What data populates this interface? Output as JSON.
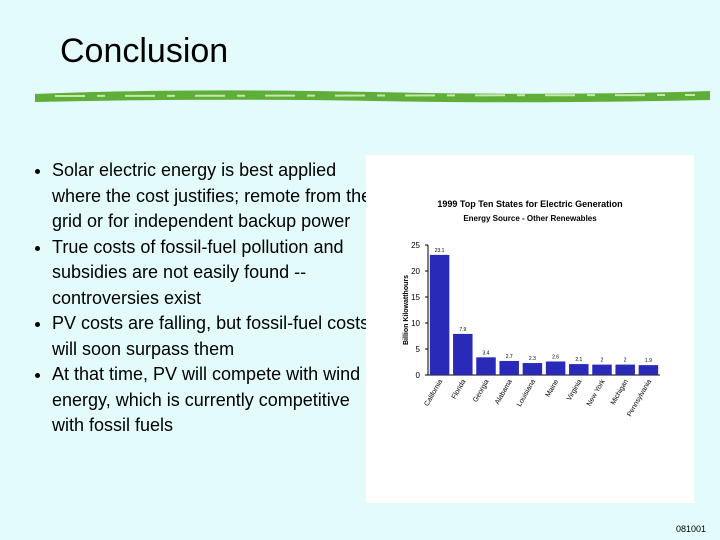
{
  "slide": {
    "title": "Conclusion",
    "bullets": [
      "Solar electric energy is best applied where the cost justifies; remote from the grid or for independent backup power",
      "True costs of fossil-fuel pollution and subsidies are not easily found -- controversies exist",
      "PV costs are falling, but fossil-fuel costs will soon surpass them",
      "At that time, PV will compete with wind energy, which is currently competitive with fossil fuels"
    ],
    "footer": "081001"
  },
  "chart_data": {
    "type": "bar",
    "title": "1999 Top Ten States for Electric Generation",
    "subtitle": "Energy Source - Other Renewables",
    "y_label": "Billion Kilowatthours",
    "categories": [
      "California",
      "Florida",
      "Georgia",
      "Alabama",
      "Louisiana",
      "Maine",
      "Virginia",
      "New York",
      "Michigan",
      "Pennsylvania"
    ],
    "values": [
      23.1,
      7.9,
      3.4,
      2.7,
      2.3,
      2.6,
      2.1,
      2.0,
      2.0,
      1.9
    ],
    "color": "#2a2ab8",
    "ylim": [
      0,
      25
    ],
    "yticks": [
      0,
      5,
      10,
      15,
      20,
      25
    ],
    "grid": false
  }
}
